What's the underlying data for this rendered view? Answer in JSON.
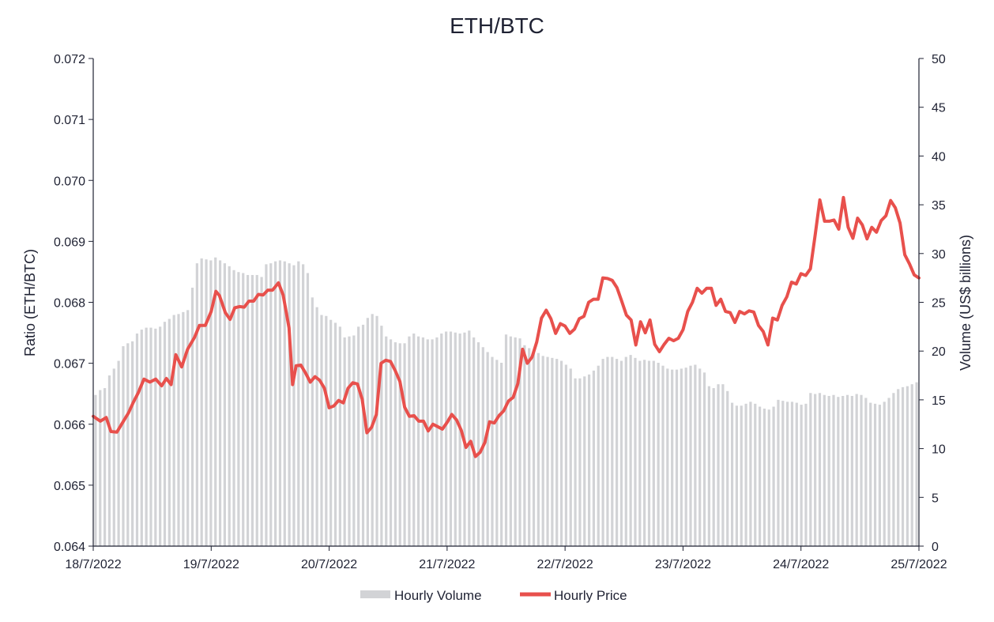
{
  "chart_data": {
    "type": "bar+line",
    "title": "ETH/BTC",
    "y_left_label": "Ratio (ETH/BTC)",
    "y_right_label": "Volume (US$ billions)",
    "y_left_range": [
      0.064,
      0.072
    ],
    "y_left_ticks": [
      "0.064",
      "0.065",
      "0.066",
      "0.067",
      "0.068",
      "0.069",
      "0.070",
      "0.071",
      "0.072"
    ],
    "y_right_range": [
      0,
      50
    ],
    "y_right_ticks": [
      "0",
      "5",
      "10",
      "15",
      "20",
      "25",
      "30",
      "35",
      "40",
      "45",
      "50"
    ],
    "x_range": [
      0,
      7
    ],
    "x_tick_labels": [
      "18/7/2022",
      "19/7/2022",
      "20/7/2022",
      "21/7/2022",
      "22/7/2022",
      "23/7/2022",
      "24/7/2022",
      "25/7/2022"
    ],
    "grid": false,
    "legend_position": "bottom",
    "legend": [
      {
        "name": "Hourly Volume",
        "color": "#d2d3d6"
      },
      {
        "name": "Hourly Price",
        "color": "#e8504c"
      }
    ],
    "series": [
      {
        "name": "Hourly Volume",
        "type": "bar",
        "axis": "right",
        "color": "#d2d3d6",
        "values": [
          15.5,
          16,
          16.2,
          17.5,
          18.2,
          19,
          20.5,
          20.8,
          21,
          21.8,
          22.2,
          22.4,
          22.4,
          22.3,
          22.5,
          23,
          23.3,
          23.7,
          23.8,
          24,
          24.2,
          26.5,
          29,
          29.5,
          29.4,
          29.3,
          29.6,
          29.3,
          29,
          28.7,
          28.3,
          28.1,
          28,
          27.8,
          27.8,
          27.8,
          27.6,
          28.9,
          29,
          29.2,
          29.3,
          29.2,
          29,
          28.8,
          29.2,
          28.9,
          28,
          25.5,
          24.5,
          23.7,
          23.6,
          23.2,
          22.9,
          22.5,
          21.4,
          21.5,
          21.6,
          22.5,
          22.7,
          23.4,
          23.8,
          23.6,
          22.6,
          21.5,
          21.2,
          20.9,
          20.8,
          20.8,
          21.5,
          21.8,
          21.5,
          21.4,
          21.2,
          21.2,
          21.4,
          21.8,
          22,
          22,
          21.9,
          21.8,
          21.9,
          22.1,
          21.4,
          20.9,
          20.4,
          19.9,
          19.4,
          19.1,
          18.8,
          21.7,
          21.5,
          21.4,
          21.3,
          20.6,
          20.3,
          20,
          19.8,
          19.5,
          19.4,
          19.3,
          19.2,
          19,
          18.6,
          18.2,
          17.2,
          17.2,
          17.4,
          17.6,
          18,
          18.5,
          19.2,
          19.4,
          19.4,
          19.2,
          19,
          19.4,
          19.6,
          19.3,
          19,
          19.1,
          19,
          19,
          18.8,
          18.5,
          18.2,
          18.1,
          18.1,
          18.2,
          18.3,
          18.5,
          18.6,
          18.2,
          17.8,
          16.4,
          16.2,
          16.6,
          16.6,
          15.9,
          14.7,
          14.4,
          14.4,
          14.6,
          14.8,
          14.6,
          14.3,
          14.1,
          14,
          14.3,
          15,
          14.9,
          14.8,
          14.8,
          14.7,
          14.5,
          14.6,
          15.7,
          15.6,
          15.7,
          15.5,
          15.4,
          15.5,
          15.3,
          15.4,
          15.5,
          15.4,
          15.6,
          15.5,
          15.2,
          14.7,
          14.6,
          14.5,
          14.8,
          15.2,
          15.7,
          16.1,
          16.3,
          16.4,
          16.6,
          16.8
        ]
      },
      {
        "name": "Hourly Price",
        "type": "line",
        "axis": "left",
        "color": "#e8504c",
        "points": [
          [
            0,
            0.06613
          ],
          [
            0.06,
            0.06605
          ],
          [
            0.11,
            0.06611
          ],
          [
            0.15,
            0.06588
          ],
          [
            0.2,
            0.06587
          ],
          [
            0.25,
            0.06603
          ],
          [
            0.3,
            0.06619
          ],
          [
            0.34,
            0.06636
          ],
          [
            0.38,
            0.06651
          ],
          [
            0.43,
            0.06674
          ],
          [
            0.48,
            0.06669
          ],
          [
            0.53,
            0.06674
          ],
          [
            0.58,
            0.06663
          ],
          [
            0.62,
            0.06675
          ],
          [
            0.66,
            0.06665
          ],
          [
            0.7,
            0.06714
          ],
          [
            0.75,
            0.06694
          ],
          [
            0.8,
            0.06723
          ],
          [
            0.86,
            0.06743
          ],
          [
            0.9,
            0.06762
          ],
          [
            0.95,
            0.06762
          ],
          [
            1.0,
            0.06785
          ],
          [
            1.04,
            0.06818
          ],
          [
            1.07,
            0.06811
          ],
          [
            1.12,
            0.06783
          ],
          [
            1.16,
            0.06772
          ],
          [
            1.2,
            0.06791
          ],
          [
            1.24,
            0.06793
          ],
          [
            1.28,
            0.06792
          ],
          [
            1.32,
            0.06802
          ],
          [
            1.36,
            0.06802
          ],
          [
            1.4,
            0.06813
          ],
          [
            1.44,
            0.06812
          ],
          [
            1.48,
            0.0682
          ],
          [
            1.52,
            0.0682
          ],
          [
            1.57,
            0.06832
          ],
          [
            1.61,
            0.06812
          ],
          [
            1.66,
            0.06758
          ],
          [
            1.69,
            0.06665
          ],
          [
            1.72,
            0.06696
          ],
          [
            1.76,
            0.06697
          ],
          [
            1.8,
            0.06684
          ],
          [
            1.84,
            0.06669
          ],
          [
            1.88,
            0.06678
          ],
          [
            1.92,
            0.06672
          ],
          [
            1.96,
            0.06659
          ],
          [
            2.0,
            0.06627
          ],
          [
            2.04,
            0.0663
          ],
          [
            2.08,
            0.06639
          ],
          [
            2.12,
            0.06635
          ],
          [
            2.16,
            0.06659
          ],
          [
            2.2,
            0.06668
          ],
          [
            2.24,
            0.06666
          ],
          [
            2.28,
            0.06641
          ],
          [
            2.32,
            0.06586
          ],
          [
            2.36,
            0.06595
          ],
          [
            2.4,
            0.06616
          ],
          [
            2.44,
            0.067
          ],
          [
            2.48,
            0.06705
          ],
          [
            2.52,
            0.06703
          ],
          [
            2.56,
            0.06688
          ],
          [
            2.6,
            0.0667
          ],
          [
            2.64,
            0.06628
          ],
          [
            2.68,
            0.06613
          ],
          [
            2.72,
            0.06614
          ],
          [
            2.76,
            0.06605
          ],
          [
            2.8,
            0.06605
          ],
          [
            2.84,
            0.06589
          ],
          [
            2.88,
            0.066
          ],
          [
            2.92,
            0.06596
          ],
          [
            2.96,
            0.06592
          ],
          [
            3.0,
            0.06603
          ],
          [
            3.04,
            0.06616
          ],
          [
            3.08,
            0.06607
          ],
          [
            3.12,
            0.0659
          ],
          [
            3.16,
            0.06562
          ],
          [
            3.2,
            0.06572
          ],
          [
            3.24,
            0.06547
          ],
          [
            3.28,
            0.06554
          ],
          [
            3.32,
            0.0657
          ],
          [
            3.36,
            0.06604
          ],
          [
            3.4,
            0.06602
          ],
          [
            3.44,
            0.06614
          ],
          [
            3.48,
            0.06622
          ],
          [
            3.52,
            0.06638
          ],
          [
            3.56,
            0.06644
          ],
          [
            3.6,
            0.06667
          ],
          [
            3.64,
            0.06723
          ],
          [
            3.68,
            0.067
          ],
          [
            3.72,
            0.0671
          ],
          [
            3.76,
            0.06735
          ],
          [
            3.8,
            0.06774
          ],
          [
            3.84,
            0.06787
          ],
          [
            3.88,
            0.06773
          ],
          [
            3.92,
            0.06749
          ],
          [
            3.96,
            0.06765
          ],
          [
            4.0,
            0.06761
          ],
          [
            4.04,
            0.06749
          ],
          [
            4.08,
            0.06756
          ],
          [
            4.12,
            0.06773
          ],
          [
            4.16,
            0.06777
          ],
          [
            4.2,
            0.068
          ],
          [
            4.24,
            0.06805
          ],
          [
            4.28,
            0.06805
          ],
          [
            4.32,
            0.0684
          ],
          [
            4.36,
            0.06839
          ],
          [
            4.4,
            0.06836
          ],
          [
            4.44,
            0.06824
          ],
          [
            4.48,
            0.06802
          ],
          [
            4.52,
            0.06779
          ],
          [
            4.56,
            0.06771
          ],
          [
            4.6,
            0.0673
          ],
          [
            4.64,
            0.06768
          ],
          [
            4.68,
            0.0675
          ],
          [
            4.72,
            0.06771
          ],
          [
            4.76,
            0.06731
          ],
          [
            4.8,
            0.06719
          ],
          [
            4.84,
            0.06731
          ],
          [
            4.88,
            0.06741
          ],
          [
            4.92,
            0.06737
          ],
          [
            4.96,
            0.06741
          ],
          [
            5.0,
            0.06755
          ],
          [
            5.04,
            0.06785
          ],
          [
            5.08,
            0.068
          ],
          [
            5.12,
            0.06823
          ],
          [
            5.16,
            0.06815
          ],
          [
            5.2,
            0.06823
          ],
          [
            5.24,
            0.06823
          ],
          [
            5.28,
            0.06795
          ],
          [
            5.32,
            0.06805
          ],
          [
            5.36,
            0.06785
          ],
          [
            5.4,
            0.06783
          ],
          [
            5.44,
            0.06767
          ],
          [
            5.48,
            0.06785
          ],
          [
            5.52,
            0.06781
          ],
          [
            5.56,
            0.06786
          ],
          [
            5.6,
            0.06784
          ],
          [
            5.64,
            0.06762
          ],
          [
            5.68,
            0.06752
          ],
          [
            5.72,
            0.0673
          ],
          [
            5.76,
            0.06774
          ],
          [
            5.8,
            0.06771
          ],
          [
            5.84,
            0.06795
          ],
          [
            5.88,
            0.06809
          ],
          [
            5.92,
            0.06833
          ],
          [
            5.96,
            0.0683
          ],
          [
            6.0,
            0.06847
          ],
          [
            6.04,
            0.06844
          ],
          [
            6.08,
            0.06855
          ],
          [
            6.12,
            0.0691
          ],
          [
            6.16,
            0.06968
          ],
          [
            6.2,
            0.06933
          ],
          [
            6.24,
            0.06933
          ],
          [
            6.28,
            0.06935
          ],
          [
            6.32,
            0.0692
          ],
          [
            6.36,
            0.06972
          ],
          [
            6.4,
            0.06923
          ],
          [
            6.44,
            0.06905
          ],
          [
            6.48,
            0.06938
          ],
          [
            6.52,
            0.06927
          ],
          [
            6.56,
            0.06904
          ],
          [
            6.6,
            0.06923
          ],
          [
            6.64,
            0.06915
          ],
          [
            6.68,
            0.06934
          ],
          [
            6.72,
            0.06942
          ],
          [
            6.76,
            0.06967
          ],
          [
            6.8,
            0.06955
          ],
          [
            6.84,
            0.0693
          ],
          [
            6.88,
            0.06878
          ],
          [
            6.92,
            0.06863
          ],
          [
            6.96,
            0.06845
          ],
          [
            7.0,
            0.0684
          ]
        ]
      }
    ]
  }
}
